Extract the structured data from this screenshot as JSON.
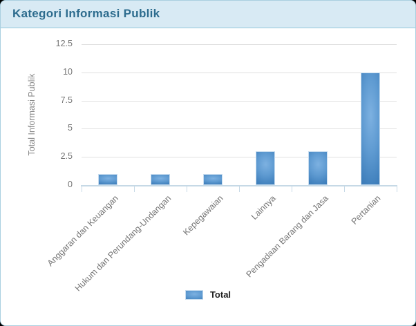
{
  "header": {
    "title": "Kategori Informasi Publik"
  },
  "chart_data": {
    "type": "bar",
    "title": "Kategori Informasi Publik",
    "categories": [
      "Anggaran dan Keuangan",
      "Hukum dan Perundang-Undangan",
      "Kepegawaian",
      "Lainnya",
      "Pengadaan Barang dan Jasa",
      "Pertanian"
    ],
    "series": [
      {
        "name": "Total",
        "values": [
          1,
          1,
          1,
          3,
          3,
          10
        ]
      }
    ],
    "xlabel": "",
    "ylabel": "Total Informasi Publik",
    "ylim": [
      0,
      12.5
    ],
    "yticks": [
      0,
      2.5,
      5,
      7.5,
      10,
      12.5
    ],
    "grid": true,
    "legend_position": "bottom"
  },
  "colors": {
    "header_bg": "#d8eaf4",
    "header_border": "#bcdcea",
    "title_text": "#2d6c8e",
    "bar_highlight": "#7db1e1",
    "bar_base": "#2f6ba6",
    "gridline": "#e0e0e0",
    "axis_line": "#c6d9e6",
    "tick_text": "#757575",
    "card_border": "#a9cfe0"
  }
}
